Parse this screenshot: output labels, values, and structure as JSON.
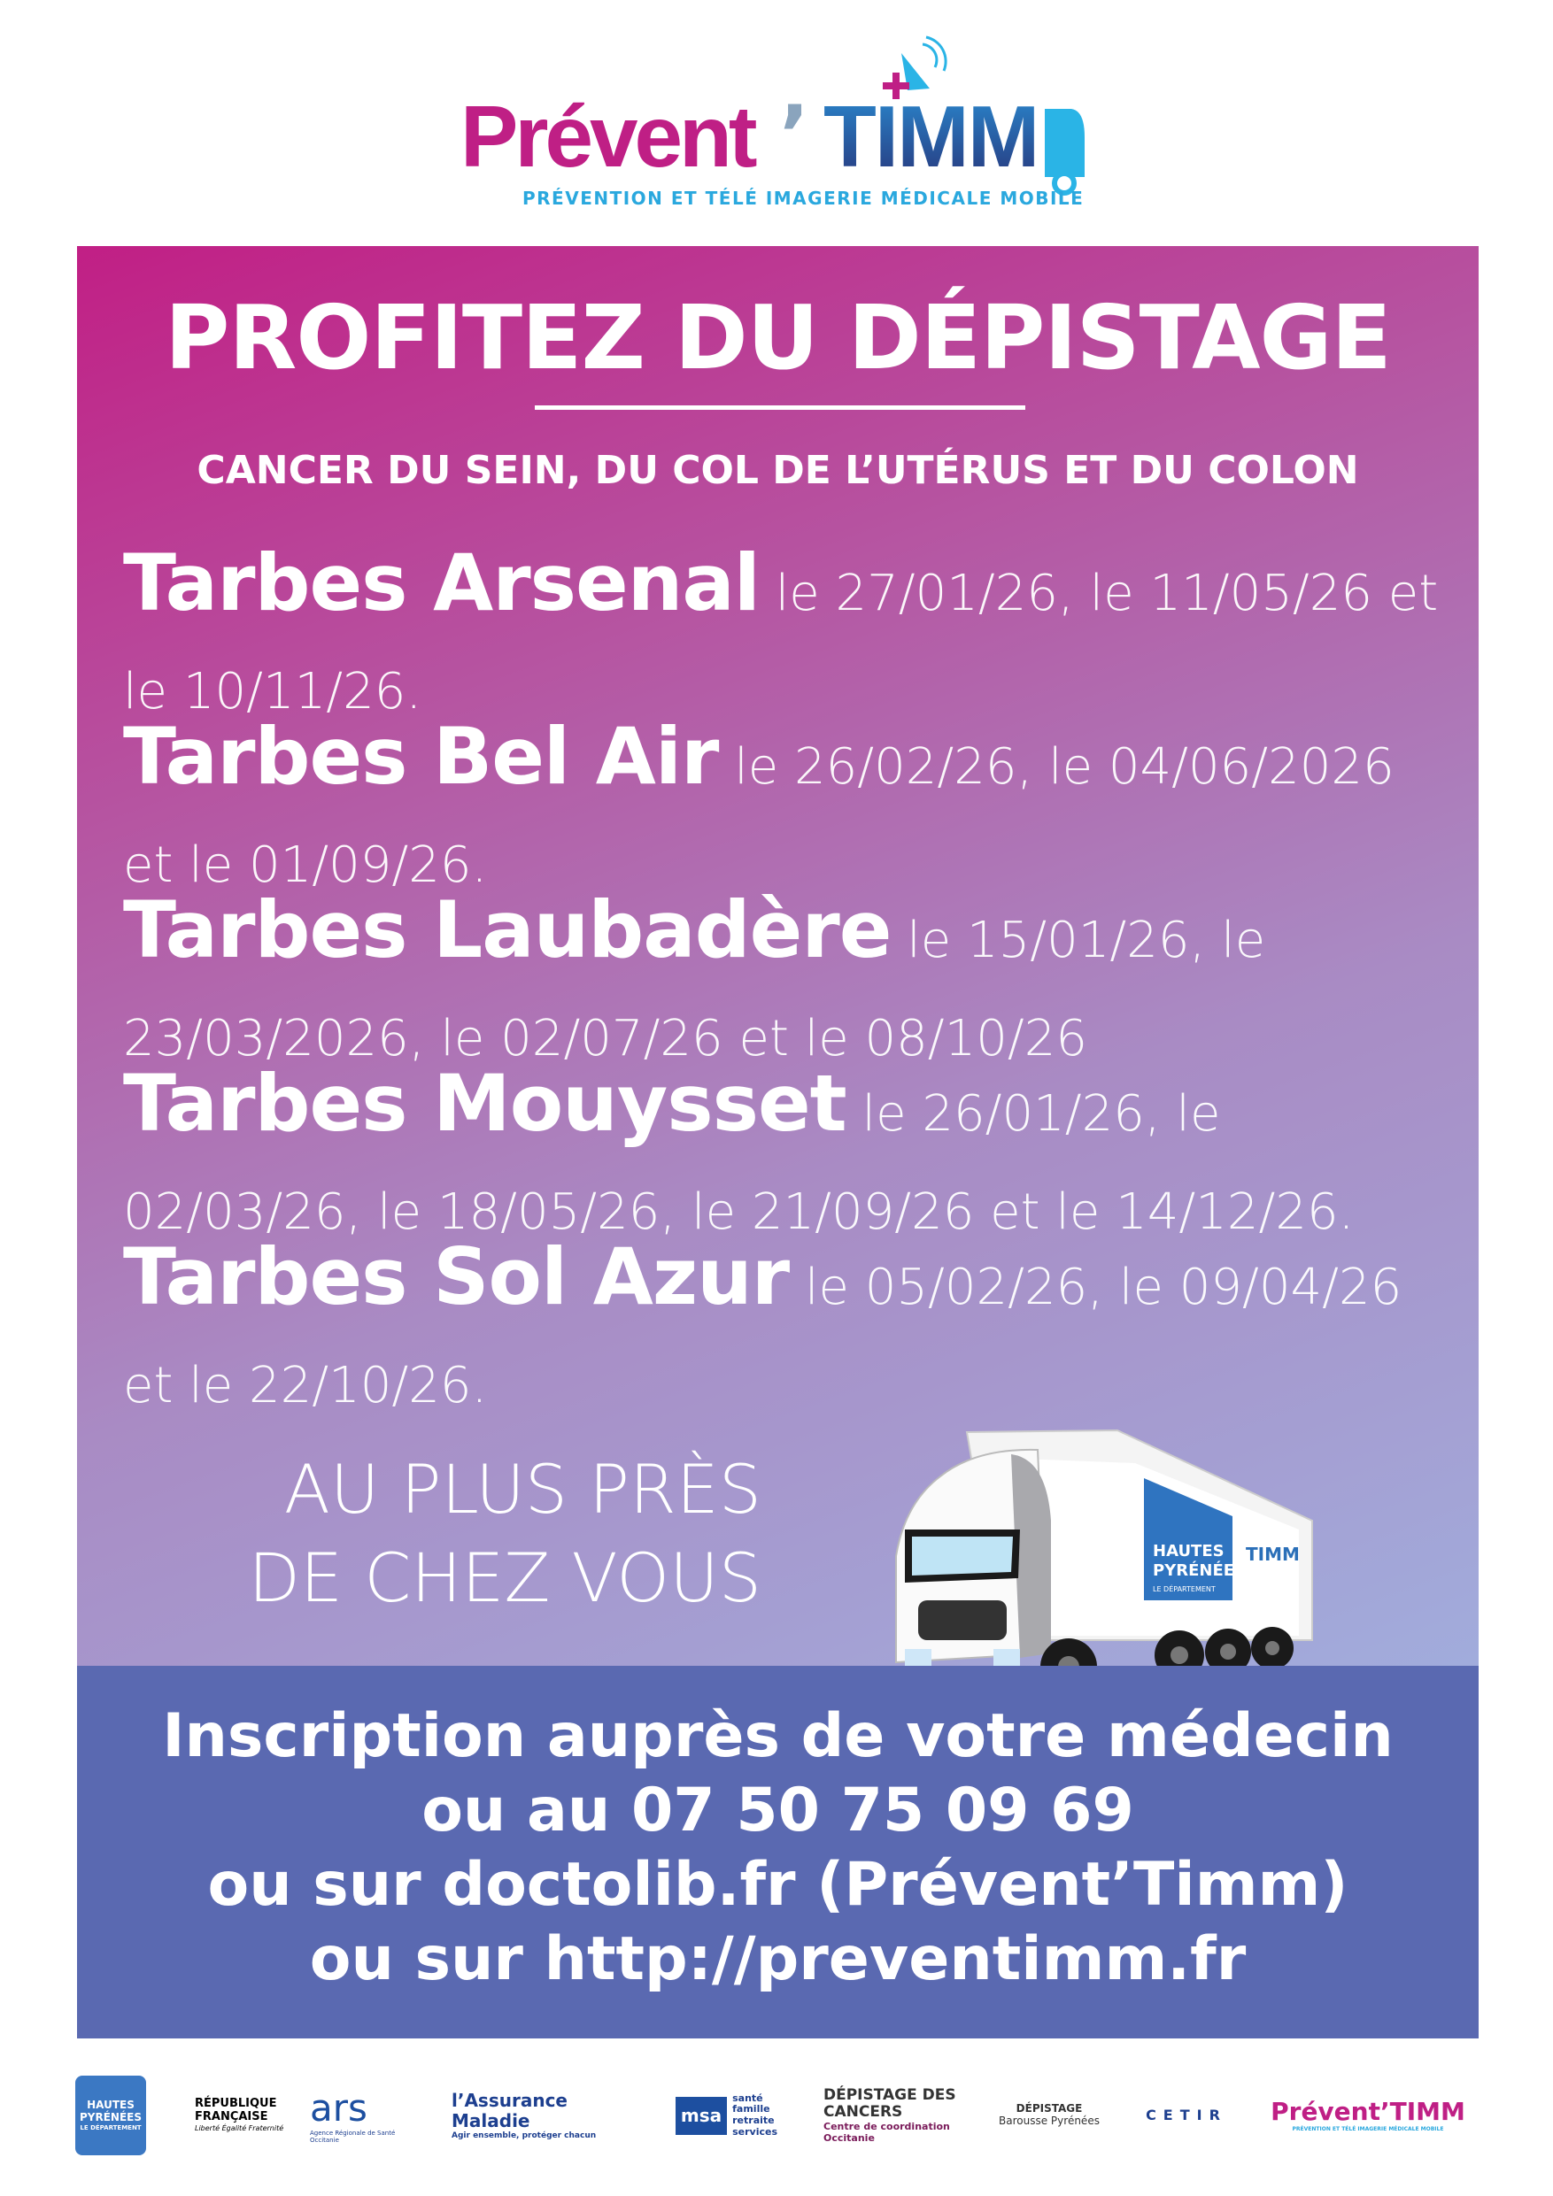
{
  "header": {
    "logo_brand": "Prévent",
    "logo_apostrophe": "’",
    "logo_suffix": "TIMM",
    "tagline": "PRÉVENTION ET TÉLÉ IMAGERIE MÉDICALE MOBILE"
  },
  "main": {
    "title": "PROFITEZ DU DÉPISTAGE",
    "subtitle": "CANCER DU SEIN, DU COL DE L’UTÉRUS ET DU COLON",
    "sites": [
      {
        "name": "Tarbes Arsenal",
        "dates": " le 27/01/26, le 11/05/26 et le 10/11/26."
      },
      {
        "name": "Tarbes Bel Air",
        "dates": " le 26/02/26, le 04/06/2026 et le 01/09/26."
      },
      {
        "name": "Tarbes Laubadère",
        "dates": " le 15/01/26, le 23/03/2026, le 02/07/26 et le 08/10/26"
      },
      {
        "name": "Tarbes Mouysset",
        "dates": " le 26/01/26, le 02/03/26, le 18/05/26, le 21/09/26 et le 14/12/26."
      },
      {
        "name": "Tarbes Sol Azur",
        "dates": " le 05/02/26, le 09/04/26 et le 22/10/26."
      }
    ],
    "slogan_line1": "AU PLUS PRÈS",
    "slogan_line2": "DE CHEZ VOUS",
    "truck_logo_line1": "HAUTES",
    "truck_logo_line2": "PYRÉNÉES",
    "truck_logo_line3": "LE DÉPARTEMENT",
    "truck_logo_timm": "TIMM"
  },
  "contact": {
    "line1": "Inscription auprès de votre médecin",
    "line2": "ou au 07 50 75 09 69",
    "line3": "ou sur doctolib.fr (Prévent’Timm)",
    "line4": "ou sur http://preventimm.fr"
  },
  "partners": [
    {
      "name": "HAUTES PYRÉNÉES",
      "sub": "LE DÉPARTEMENT"
    },
    {
      "name": "RÉPUBLIQUE FRANÇAISE",
      "sub": "Liberté Égalité Fraternité"
    },
    {
      "name": "ars",
      "sub": "Agence Régionale de Santé Occitanie"
    },
    {
      "name": "l’Assurance Maladie",
      "sub": "Agir ensemble, protéger chacun"
    },
    {
      "name": "msa",
      "sub": "santé famille retraite services"
    },
    {
      "name": "DÉPISTAGE DES CANCERS",
      "sub": "Centre de coordination Occitanie"
    },
    {
      "name": "DÉPISTAGE",
      "sub": "Barousse Pyrénées"
    },
    {
      "name": "CETIR",
      "sub": ""
    },
    {
      "name": "Prévent’TIMM",
      "sub": "PRÉVENTION ET TÉLÉ IMAGERIE MÉDICALE MOBILE"
    }
  ],
  "colors": {
    "magenta": "#bf1f85",
    "band": "#5a69b1",
    "cyan": "#2aa8de",
    "navy": "#27357a"
  }
}
